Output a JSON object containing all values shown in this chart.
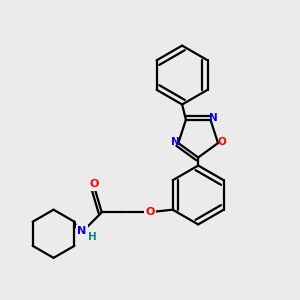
{
  "background_color": "#ebebeb",
  "bond_color": "#000000",
  "atom_colors": {
    "N": "#0000ff",
    "O": "#ff0000",
    "H": "#008b8b"
  },
  "figsize": [
    3.0,
    3.0
  ],
  "dpi": 100,
  "lw": 1.6,
  "fs": 7.5
}
